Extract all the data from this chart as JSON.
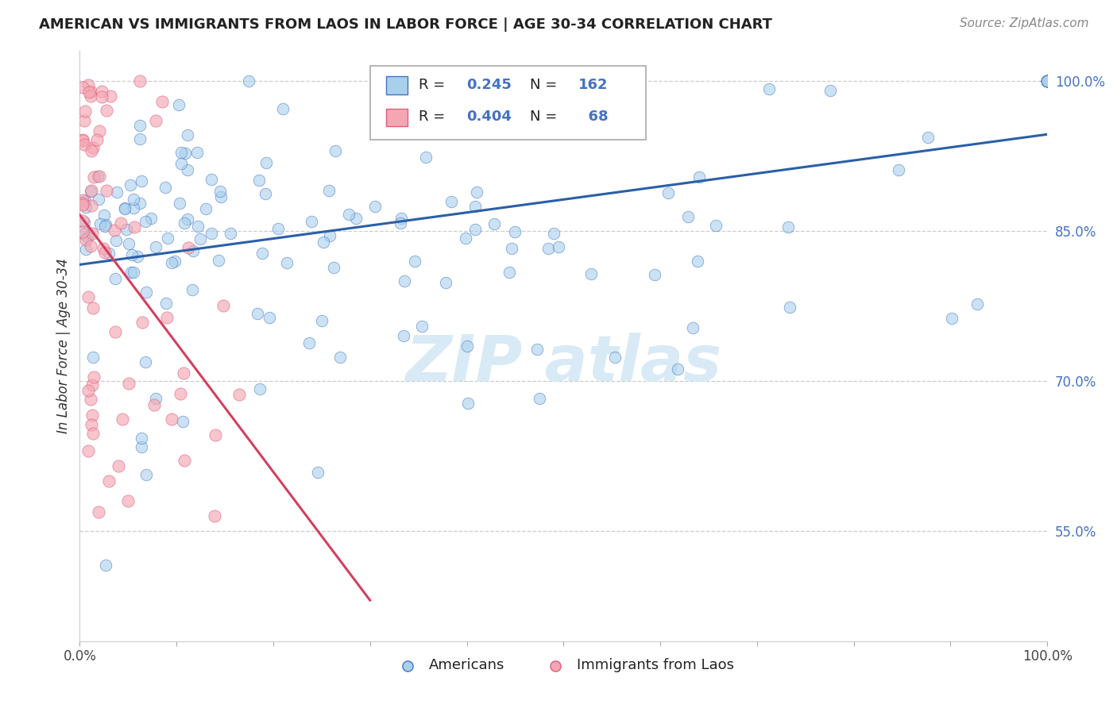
{
  "title": "AMERICAN VS IMMIGRANTS FROM LAOS IN LABOR FORCE | AGE 30-34 CORRELATION CHART",
  "source": "Source: ZipAtlas.com",
  "ylabel": "In Labor Force | Age 30-34",
  "xlim": [
    0.0,
    1.0
  ],
  "ylim": [
    0.44,
    1.03
  ],
  "x_tick_positions": [
    0.0,
    0.1,
    0.2,
    0.3,
    0.4,
    0.5,
    0.6,
    0.7,
    0.8,
    0.9,
    1.0
  ],
  "x_tick_labels_show": [
    "0.0%",
    "",
    "",
    "",
    "",
    "",
    "",
    "",
    "",
    "",
    "100.0%"
  ],
  "y_tick_vals_right": [
    0.55,
    0.7,
    0.85,
    1.0
  ],
  "y_tick_labels_right": [
    "55.0%",
    "70.0%",
    "85.0%",
    "100.0%"
  ],
  "r_american": 0.245,
  "n_american": 162,
  "r_laos": 0.404,
  "n_laos": 68,
  "blue_fill": "#a8d0eb",
  "blue_edge": "#4472c4",
  "pink_fill": "#f4a7b3",
  "pink_edge": "#e05c7a",
  "blue_line_color": "#2b5fa8",
  "pink_line_color": "#d44060",
  "watermark_color": "#d8eaf5",
  "legend_label_american": "Americans",
  "legend_label_laos": "Immigrants from Laos"
}
